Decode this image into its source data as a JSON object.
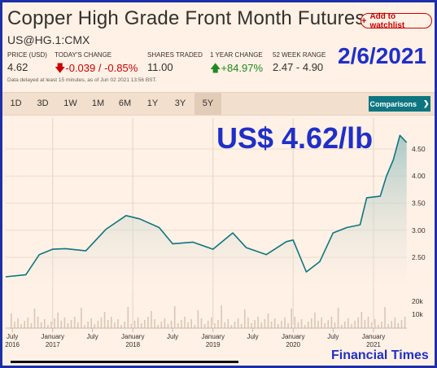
{
  "header": {
    "title": "Copper High Grade Front Month Futures",
    "watchlist_label": "Add to watchlist",
    "ticker": "US@HG.1:CMX"
  },
  "stats": {
    "price_label": "PRICE (USD)",
    "price_value": "4.62",
    "change_label": "TODAY'S CHANGE",
    "change_value": "-0.039 / -0.85%",
    "shares_label": "SHARES TRADED",
    "shares_value": "11.00",
    "year_change_label": "1 YEAR CHANGE",
    "year_change_value": "+84.97%",
    "range_label": "52 WEEK RANGE",
    "range_value": "2.47 - 4.90"
  },
  "delayed_note": "Data delayed at least 15 minutes, as of Jun 02 2021 13:56 BST.",
  "annotations": {
    "date": "2/6/2021",
    "price": "US$ 4.62/lb",
    "source": "Financial Times"
  },
  "toolbar": {
    "tabs": [
      "1D",
      "3D",
      "1W",
      "1M",
      "6M",
      "1Y",
      "3Y",
      "5Y"
    ],
    "active_tab": "5Y",
    "comparisons_label": "Comparisons"
  },
  "colors": {
    "background": "#fff1e5",
    "line": "#0d7680",
    "down": "#cc0000",
    "up": "#1f8a1f",
    "annotation": "#1f2fc8"
  },
  "chart_data": {
    "type": "area",
    "x_tick_labels": [
      {
        "month": "July",
        "year": "2016"
      },
      {
        "month": "January",
        "year": "2017"
      },
      {
        "month": "July",
        "year": ""
      },
      {
        "month": "January",
        "year": "2018"
      },
      {
        "month": "July",
        "year": ""
      },
      {
        "month": "January",
        "year": "2019"
      },
      {
        "month": "July",
        "year": ""
      },
      {
        "month": "January",
        "year": "2020"
      },
      {
        "month": "July",
        "year": ""
      },
      {
        "month": "January",
        "year": "2021"
      }
    ],
    "y_ticks": [
      2.5,
      3.0,
      3.5,
      4.0,
      4.5
    ],
    "y_tick_labels": [
      "2.50",
      "3.00",
      "3.50",
      "4.00",
      "4.50"
    ],
    "volume_ticks": [
      "20k",
      "10k"
    ],
    "ylim": [
      1.9,
      4.95
    ],
    "x": [
      "2016-06",
      "2016-09",
      "2016-11",
      "2017-01",
      "2017-03",
      "2017-06",
      "2017-09",
      "2017-12",
      "2018-02",
      "2018-05",
      "2018-07",
      "2018-10",
      "2019-01",
      "2019-04",
      "2019-06",
      "2019-09",
      "2019-12",
      "2020-01",
      "2020-03",
      "2020-05",
      "2020-07",
      "2020-09",
      "2020-11",
      "2020-12",
      "2021-02",
      "2021-03",
      "2021-04",
      "2021-05",
      "2021-06"
    ],
    "series": [
      {
        "values": [
          2.14,
          2.18,
          2.55,
          2.65,
          2.66,
          2.62,
          3.02,
          3.27,
          3.21,
          3.05,
          2.75,
          2.78,
          2.65,
          2.95,
          2.68,
          2.55,
          2.79,
          2.82,
          2.23,
          2.42,
          2.95,
          3.05,
          3.1,
          3.6,
          3.63,
          4.0,
          4.3,
          4.75,
          4.62
        ]
      }
    ]
  }
}
